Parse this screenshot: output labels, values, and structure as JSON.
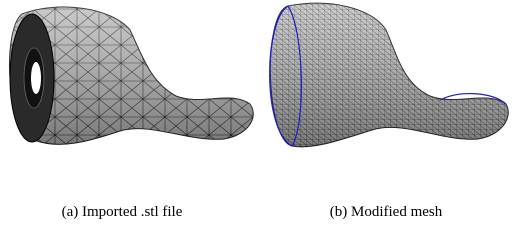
{
  "figure": {
    "subfigures": [
      {
        "caption": "(a) Imported .stl file"
      },
      {
        "caption": "(b) Modified mesh"
      }
    ]
  }
}
